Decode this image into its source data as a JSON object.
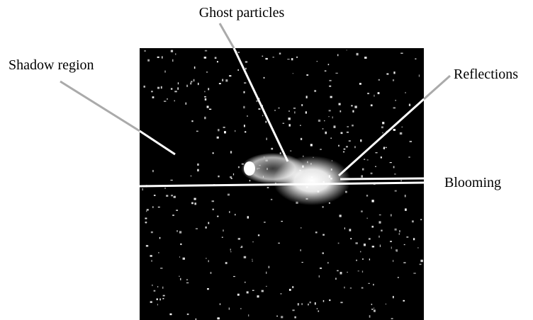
{
  "annotations": [
    {
      "label": "Ghost particles"
    },
    {
      "label": "Shadow region"
    },
    {
      "label": "Reflections"
    },
    {
      "label": "Blooming"
    }
  ]
}
